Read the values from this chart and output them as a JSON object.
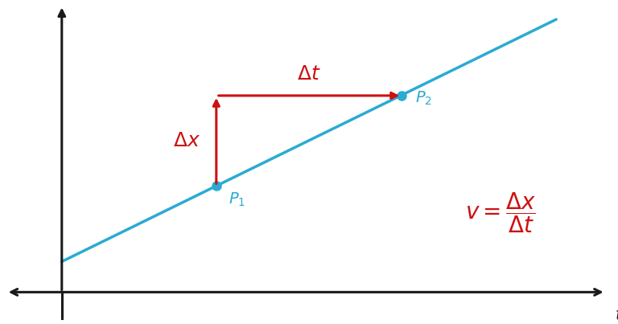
{
  "bg_color": "#ffffff",
  "line_color": "#29ABD4",
  "red_color": "#CC1111",
  "axis_color": "#1a1a1a",
  "point_color": "#29ABD4",
  "p1_data": [
    2.5,
    2.0
  ],
  "p2_data": [
    5.5,
    3.7
  ],
  "line_slope": 0.57,
  "line_intercept": 0.575,
  "line_x_start": 0.0,
  "line_x_end": 8.0,
  "xlim": [
    -1.0,
    9.0
  ],
  "ylim": [
    -0.6,
    5.5
  ],
  "origin_x": 0.0,
  "origin_y": 0.0,
  "label_t": "$t$ (s)",
  "label_p1": "$P_1$",
  "label_p2": "$P_2$",
  "label_delta_x": "$\\Delta x$",
  "label_delta_t": "$\\Delta t$",
  "fontsize_labels": 15,
  "fontsize_points": 14,
  "fontsize_formula": 18,
  "fontsize_axis_label": 15
}
